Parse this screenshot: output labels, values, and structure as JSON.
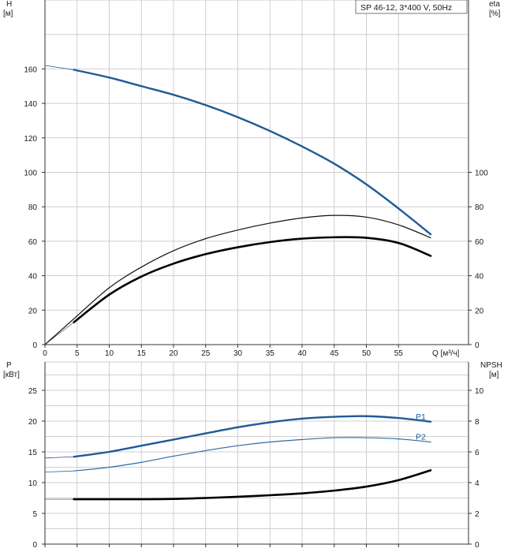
{
  "legend": "SP 46-12, 3*400 V, 50Hz",
  "colors": {
    "head": "#1f5a96",
    "eta": "#111111",
    "p1": "#1f5a96",
    "p2": "#2d6aa8",
    "npsh": "#000000"
  },
  "chart_data": [
    {
      "type": "line",
      "name": "top-panel",
      "ylabel": "H\n[м]",
      "ylabel_right": "eta\n[%]",
      "xlabel": "Q [м³/ч]",
      "xlim": [
        0,
        60
      ],
      "ylim": [
        0,
        180
      ],
      "xticks": [
        0,
        5,
        10,
        15,
        20,
        25,
        30,
        35,
        40,
        45,
        50,
        55
      ],
      "yticks": [
        0,
        20,
        40,
        60,
        80,
        100,
        120,
        140,
        160
      ],
      "yticks_right": [
        0,
        20,
        40,
        60,
        80,
        100
      ],
      "series": [
        {
          "key": "head_ext",
          "style": "thin",
          "x": [
            0,
            4.5
          ],
          "y": [
            162,
            159.5
          ]
        },
        {
          "key": "head",
          "style": "main",
          "x": [
            4.5,
            10,
            15,
            20,
            25,
            30,
            35,
            40,
            45,
            50,
            55,
            60
          ],
          "y": [
            159.5,
            155,
            150,
            145,
            139,
            132,
            124,
            115,
            105,
            93,
            79,
            64
          ]
        },
        {
          "key": "eta_thin",
          "style": "thinblack",
          "x": [
            0,
            4.5,
            10,
            15,
            20,
            25,
            30,
            35,
            40,
            45,
            50,
            55,
            60
          ],
          "y": [
            0,
            15,
            33,
            45,
            54.5,
            61.5,
            66.5,
            70.5,
            73.5,
            75,
            74,
            69.5,
            62
          ]
        },
        {
          "key": "eta_base",
          "style": "hair",
          "x": [
            0,
            4.5
          ],
          "y": [
            0,
            13
          ]
        },
        {
          "key": "eta_thick",
          "style": "thick",
          "x": [
            4.5,
            10,
            15,
            20,
            25,
            30,
            35,
            40,
            45,
            50,
            55,
            60
          ],
          "y": [
            13,
            29,
            39.5,
            47,
            52.5,
            56.5,
            59.5,
            61.5,
            62.3,
            62,
            59,
            51.5
          ]
        }
      ]
    },
    {
      "type": "line",
      "name": "bottom-panel",
      "ylabel": "P\n[кВт]",
      "ylabel_right": "NPSH\n[м]",
      "xlim": [
        0,
        60
      ],
      "ylim": [
        0,
        27.5
      ],
      "yticks": [
        0,
        5,
        10,
        15,
        20,
        25
      ],
      "yticks_right": [
        0,
        2,
        4,
        6,
        8,
        10
      ],
      "series": [
        {
          "key": "p1_ext",
          "style": "thin",
          "x": [
            0,
            4.5
          ],
          "y": [
            14,
            14.2
          ]
        },
        {
          "key": "p1",
          "name": "P1",
          "style": "main",
          "x": [
            4.5,
            10,
            15,
            20,
            25,
            30,
            35,
            40,
            45,
            50,
            55,
            60
          ],
          "y": [
            14.2,
            15,
            16,
            17,
            18,
            19,
            19.8,
            20.4,
            20.7,
            20.8,
            20.5,
            19.9
          ]
        },
        {
          "key": "p2_ext",
          "style": "thinblue",
          "x": [
            0,
            4.5
          ],
          "y": [
            11.7,
            11.9
          ]
        },
        {
          "key": "p2",
          "name": "P2",
          "style": "mid",
          "x": [
            4.5,
            10,
            15,
            20,
            25,
            30,
            35,
            40,
            45,
            50,
            55,
            60
          ],
          "y": [
            11.9,
            12.5,
            13.3,
            14.3,
            15.2,
            16,
            16.6,
            17,
            17.3,
            17.3,
            17.1,
            16.6
          ]
        },
        {
          "key": "npsh_ext",
          "style": "hair",
          "x": [
            0,
            4.5
          ],
          "y": [
            7.3,
            7.3
          ]
        },
        {
          "key": "npsh",
          "style": "thick",
          "x": [
            4.5,
            10,
            15,
            20,
            25,
            30,
            35,
            40,
            45,
            50,
            55,
            60
          ],
          "y": [
            7.3,
            7.3,
            7.3,
            7.35,
            7.5,
            7.7,
            7.95,
            8.25,
            8.7,
            9.35,
            10.4,
            12
          ]
        }
      ]
    }
  ]
}
